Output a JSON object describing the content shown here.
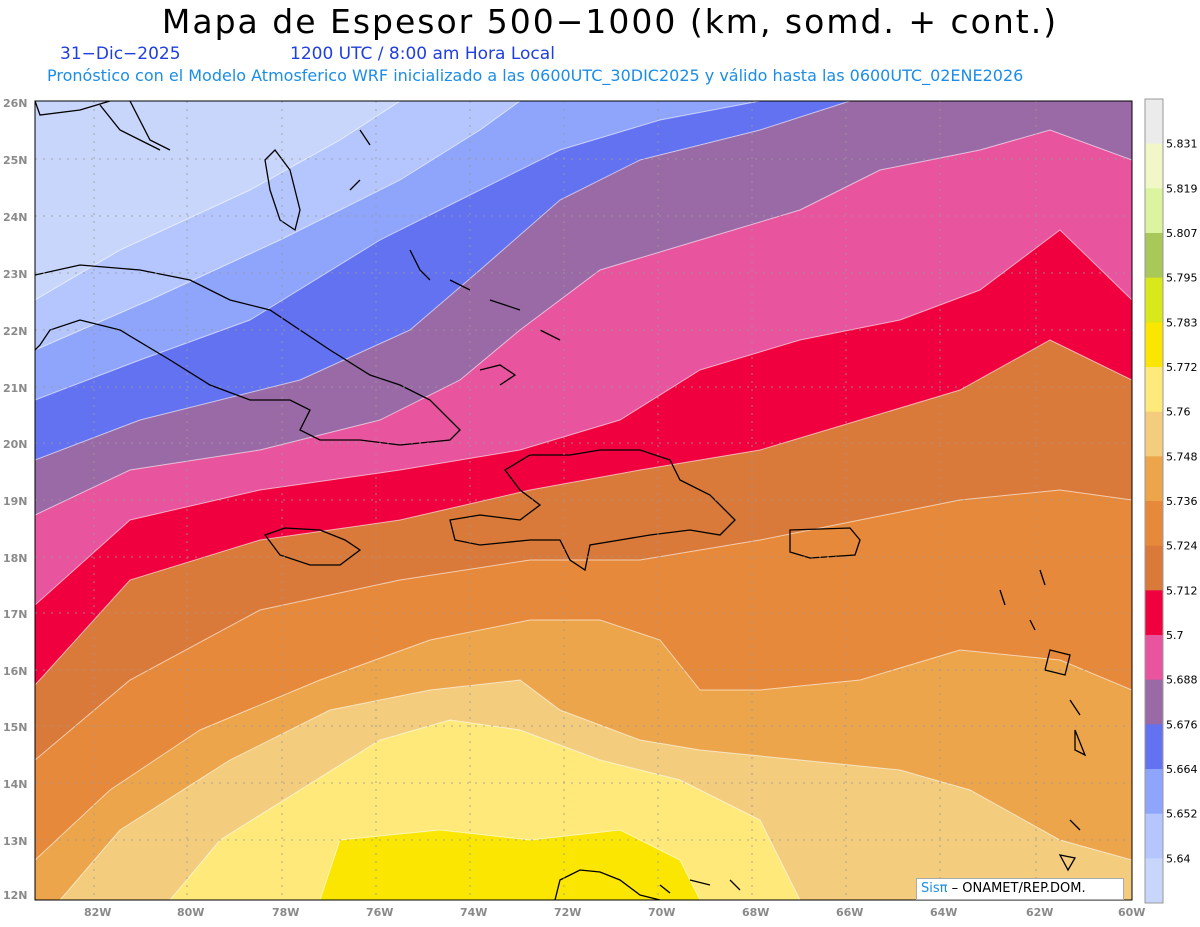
{
  "header": {
    "title": "Mapa de Espesor 500−1000 (km, somd. + cont.)",
    "date": "31−Dic−2025",
    "time": "1200 UTC / 8:00 am Hora Local",
    "subtitle": "Pronóstico con el Modelo Atmosferico WRF inicializado a las 0600UTC_30DIC2025 y válido hasta las  0600UTC_02ENE2026"
  },
  "axes": {
    "lat_labels": [
      "26N",
      "25N",
      "24N",
      "23N",
      "22N",
      "21N",
      "20N",
      "19N",
      "18N",
      "17N",
      "16N",
      "15N",
      "14N",
      "13N",
      "12N"
    ],
    "lon_labels": [
      "82W",
      "80W",
      "78W",
      "76W",
      "74W",
      "72W",
      "70W",
      "68W",
      "66W",
      "64W",
      "62W",
      "60W"
    ]
  },
  "colorbar": {
    "levels": [
      "5.831",
      "5.819",
      "5.807",
      "5.795",
      "5.783",
      "5.772",
      "5.76",
      "5.748",
      "5.736",
      "5.724",
      "5.712",
      "5.7",
      "5.688",
      "5.676",
      "5.664",
      "5.652",
      "5.64"
    ],
    "colors": [
      "#ebebeb",
      "#f2f7c8",
      "#dcf3a0",
      "#a8c85a",
      "#d8e81a",
      "#fae600",
      "#ffe97a",
      "#f3cd7d",
      "#eca54a",
      "#e6893a",
      "#d97a3a",
      "#f0003e",
      "#e8549e",
      "#9a6aa6",
      "#6272f0",
      "#8ea5fb",
      "#b4c6fd",
      "#c9d6fc"
    ]
  },
  "credit": {
    "logo": "Sisπ",
    "text": "– ONAMET/REP.DOM."
  }
}
